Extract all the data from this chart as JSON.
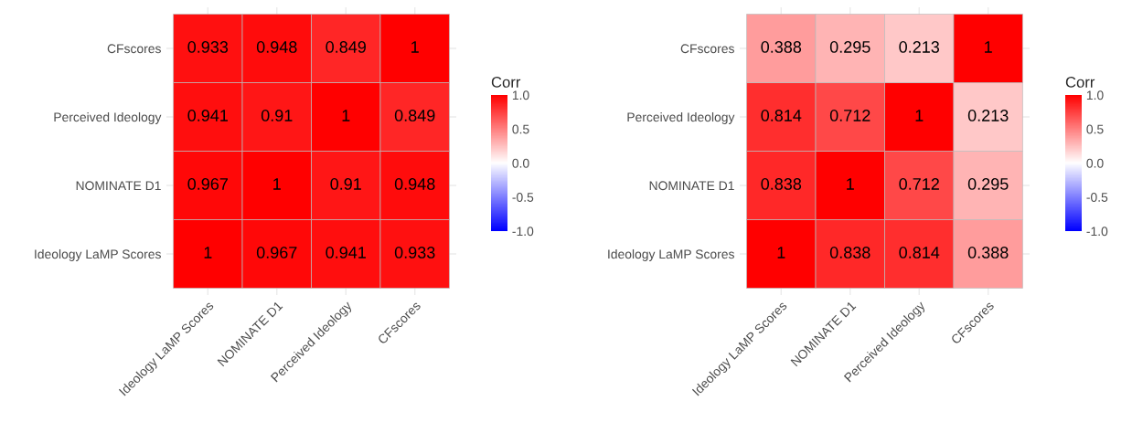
{
  "chart_data": [
    {
      "type": "heatmap",
      "categories": [
        "Ideology LaMP Scores",
        "NOMINATE D1",
        "Perceived Ideology",
        "CFscores"
      ],
      "y_categories": [
        "CFscores",
        "Perceived Ideology",
        "NOMINATE D1",
        "Ideology LaMP Scores"
      ],
      "cells": [
        [
          0.933,
          0.948,
          0.849,
          1
        ],
        [
          0.941,
          0.91,
          1,
          0.849
        ],
        [
          0.967,
          1,
          0.91,
          0.948
        ],
        [
          1,
          0.967,
          0.941,
          0.933
        ]
      ],
      "data_labels": true,
      "clabel": "Corr",
      "clim": [
        -1,
        1
      ],
      "cticks": [
        {
          "value": -1,
          "label": "-1.0"
        },
        {
          "value": -0.5,
          "label": "-0.5"
        },
        {
          "value": 0,
          "label": "0.0"
        },
        {
          "value": 0.5,
          "label": "0.5"
        },
        {
          "value": 1,
          "label": "1.0"
        }
      ],
      "grid": true
    },
    {
      "type": "heatmap",
      "categories": [
        "Ideology LaMP Scores",
        "NOMINATE D1",
        "Perceived Ideology",
        "CFscores"
      ],
      "y_categories": [
        "CFscores",
        "Perceived Ideology",
        "NOMINATE D1",
        "Ideology LaMP Scores"
      ],
      "cells": [
        [
          0.388,
          0.295,
          0.213,
          1
        ],
        [
          0.814,
          0.712,
          1,
          0.213
        ],
        [
          0.838,
          1,
          0.712,
          0.295
        ],
        [
          1,
          0.838,
          0.814,
          0.388
        ]
      ],
      "data_labels": true,
      "clabel": "Corr",
      "clim": [
        -1,
        1
      ],
      "cticks": [
        {
          "value": -1,
          "label": "-1.0"
        },
        {
          "value": -0.5,
          "label": "-0.5"
        },
        {
          "value": 0,
          "label": "0.0"
        },
        {
          "value": 0.5,
          "label": "0.5"
        },
        {
          "value": 1,
          "label": "1.0"
        }
      ],
      "grid": true
    }
  ]
}
